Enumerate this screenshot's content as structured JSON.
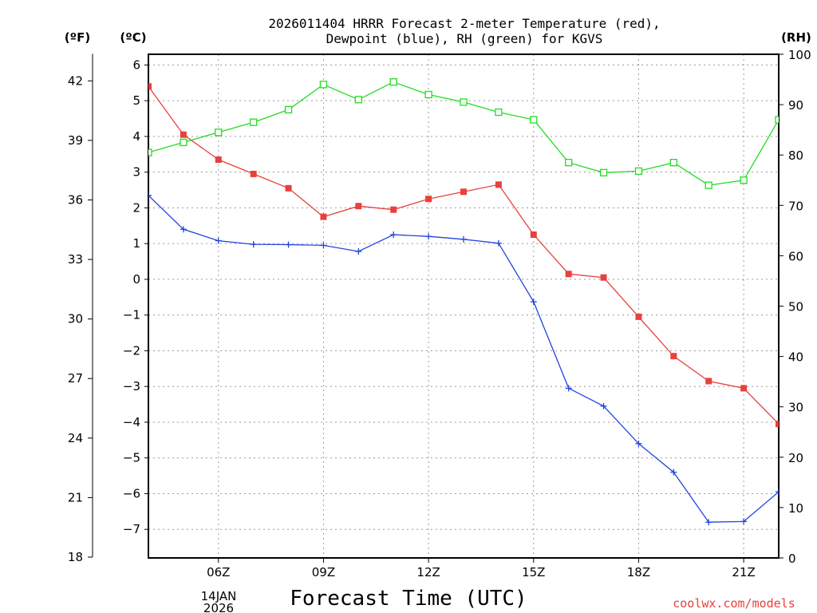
{
  "chart_data": {
    "type": "line",
    "title_line1": "2026011404 HRRR Forecast 2-meter Temperature (red),",
    "title_line2": "Dewpoint (blue), RH (green) for KGVS",
    "left_unit_f": "(ºF)",
    "left_unit_c": "(ºC)",
    "right_unit": "(RH)",
    "xlabel": "Forecast Time (UTC)",
    "credit": "coolwx.com/models",
    "date_label_line1": "14JAN",
    "date_label_line2": "2026",
    "x_hours": [
      4,
      5,
      6,
      7,
      8,
      9,
      10,
      11,
      12,
      13,
      14,
      15,
      16,
      17,
      18,
      19,
      20,
      21,
      22
    ],
    "x_range": [
      4,
      22
    ],
    "x_ticks": [
      {
        "hour": 6,
        "label": "06Z"
      },
      {
        "hour": 9,
        "label": "09Z"
      },
      {
        "hour": 12,
        "label": "12Z"
      },
      {
        "hour": 15,
        "label": "15Z"
      },
      {
        "hour": 18,
        "label": "18Z"
      },
      {
        "hour": 21,
        "label": "21Z"
      }
    ],
    "celsius_range": [
      -7.8,
      6.3
    ],
    "celsius_ticks": [
      6,
      5,
      4,
      3,
      2,
      1,
      0,
      -1,
      -2,
      -3,
      -4,
      -5,
      -6,
      -7
    ],
    "fahrenheit_ticks": [
      42,
      39,
      36,
      33,
      30,
      27,
      24,
      21,
      18
    ],
    "rh_range": [
      0,
      100
    ],
    "rh_ticks": [
      100,
      90,
      80,
      70,
      60,
      50,
      40,
      30,
      20,
      10,
      0
    ],
    "series": [
      {
        "name": "2-meter Temperature",
        "unit": "C",
        "color": "#e8403c",
        "marker": "filled-square",
        "values": [
          5.4,
          4.05,
          3.35,
          2.95,
          2.55,
          1.75,
          2.05,
          1.95,
          2.25,
          2.45,
          2.65,
          1.25,
          0.15,
          0.05,
          -1.05,
          -2.15,
          -2.85,
          -3.05,
          -4.05
        ]
      },
      {
        "name": "Dewpoint",
        "unit": "C",
        "color": "#2244dd",
        "marker": "plus",
        "values": [
          2.35,
          1.4,
          1.08,
          0.98,
          0.97,
          0.95,
          0.78,
          1.25,
          1.2,
          1.12,
          1.01,
          -0.63,
          -3.05,
          -3.55,
          -4.6,
          -5.4,
          -6.8,
          -6.78,
          -5.95
        ]
      },
      {
        "name": "Relative Humidity",
        "unit": "%",
        "color": "#22dd22",
        "marker": "open-square",
        "values": [
          80.5,
          82.5,
          84.5,
          86.5,
          89,
          94,
          91,
          94.5,
          92,
          90.5,
          88.5,
          87,
          78.5,
          76.5,
          76.8,
          78.5,
          74,
          75,
          87
        ]
      }
    ]
  }
}
